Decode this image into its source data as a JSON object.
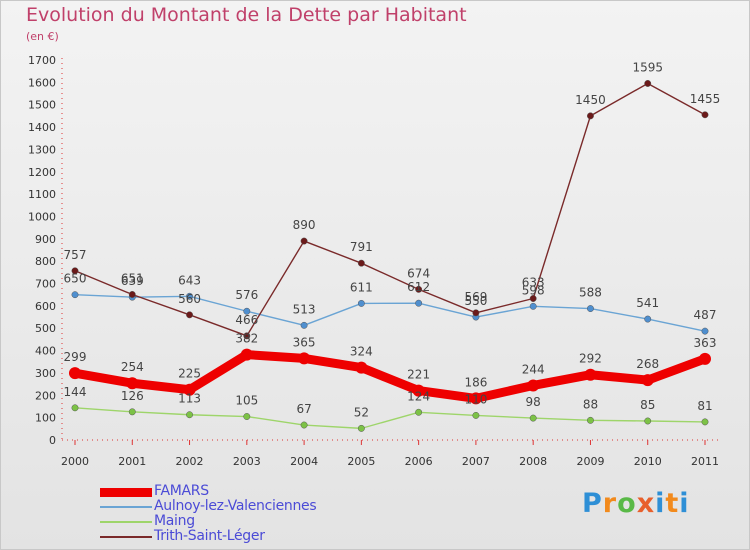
{
  "header": {
    "title": "Evolution du Montant de la Dette par Habitant",
    "subtitle": "(en €)"
  },
  "brand": {
    "letters": [
      "P",
      "r",
      "o",
      "x",
      "i",
      "t",
      "i"
    ],
    "colors": [
      "#2e8fd6",
      "#f28a1c",
      "#59b947",
      "#e8602c",
      "#2e8fd6",
      "#f28a1c",
      "#2e8fd6"
    ]
  },
  "chart_data": {
    "type": "line",
    "title": "Evolution du Montant de la Dette par Habitant",
    "ylabel": "(en €)",
    "xlabel": "",
    "ylim": [
      0,
      1700
    ],
    "yticks": [
      0,
      100,
      200,
      300,
      400,
      500,
      600,
      700,
      800,
      900,
      1000,
      1100,
      1200,
      1300,
      1400,
      1500,
      1600,
      1700
    ],
    "x": [
      "2000",
      "2001",
      "2002",
      "2003",
      "2004",
      "2005",
      "2006",
      "2007",
      "2008",
      "2009",
      "2010",
      "2011"
    ],
    "legend_position": "bottom-left",
    "grid": false,
    "series": [
      {
        "name": "FAMARS",
        "color": "#ee0000",
        "bold": true,
        "marker_color": "#ee0000",
        "values": [
          299,
          254,
          225,
          382,
          365,
          324,
          221,
          186,
          244,
          292,
          268,
          363
        ]
      },
      {
        "name": "Aulnoy-lez-Valenciennes",
        "color": "#6aa4d4",
        "bold": false,
        "marker_color": "#4f8fcf",
        "values": [
          650,
          639,
          643,
          576,
          513,
          611,
          612,
          550,
          598,
          588,
          541,
          487
        ]
      },
      {
        "name": "Maing",
        "color": "#9ed56a",
        "bold": false,
        "marker_color": "#7cc246",
        "values": [
          144,
          126,
          113,
          105,
          67,
          52,
          124,
          110,
          98,
          88,
          85,
          81
        ]
      },
      {
        "name": "Trith-Saint-Léger",
        "color": "#7a2a2a",
        "bold": false,
        "marker_color": "#6b1a1a",
        "values": [
          757,
          651,
          560,
          466,
          890,
          791,
          674,
          569,
          633,
          1450,
          1595,
          1455
        ]
      }
    ]
  }
}
